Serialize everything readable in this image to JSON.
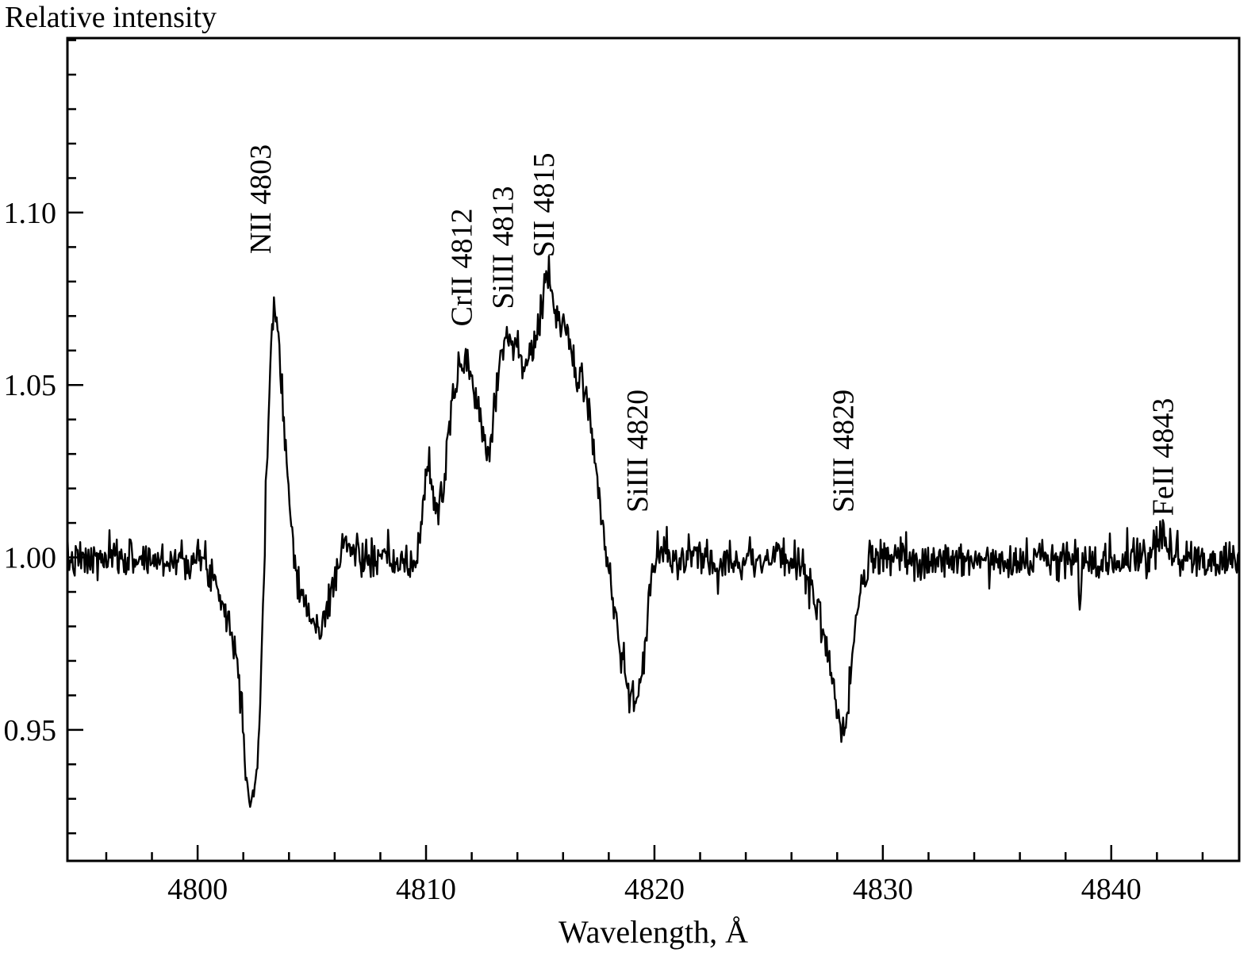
{
  "chart_data": {
    "type": "line",
    "title": "",
    "xlabel": "Wavelength, Å",
    "ylabel": "Relative intensity",
    "xlim": [
      4794.3,
      4845.6
    ],
    "ylim": [
      0.912,
      1.1506
    ],
    "grid": false,
    "legend": "none",
    "line_color": "#000000",
    "x_major_ticks": [
      4800,
      4810,
      4820,
      4830,
      4840
    ],
    "x_tick_labels": [
      "4800",
      "4810",
      "4820",
      "4830",
      "4840"
    ],
    "x_minor_step": 2,
    "y_major_ticks": [
      0.95,
      1.0,
      1.05,
      1.1
    ],
    "y_tick_labels": [
      "0.95",
      "1.00",
      "1.05",
      "1.10"
    ],
    "y_minor_step": 0.01,
    "noise_sigma": 0.0028,
    "sample_step": 0.04,
    "annotations": [
      {
        "label": "NII 4803",
        "x": 4802.85,
        "y": 1.088
      },
      {
        "label": "CrII 4812",
        "x": 4811.65,
        "y": 1.067
      },
      {
        "label": "SiIII 4813",
        "x": 4813.45,
        "y": 1.072
      },
      {
        "label": "SII 4815",
        "x": 4815.25,
        "y": 1.087
      },
      {
        "label": "SiIII 4820",
        "x": 4819.35,
        "y": 1.013
      },
      {
        "label": "SiIII 4829",
        "x": 4828.35,
        "y": 1.013
      },
      {
        "label": "FeII 4843",
        "x": 4842.35,
        "y": 1.012
      }
    ],
    "profile_points": [
      [
        4794.3,
        0.999
      ],
      [
        4795.5,
        0.999
      ],
      [
        4797.0,
        1.0
      ],
      [
        4798.5,
        0.999
      ],
      [
        4799.5,
        1.0
      ],
      [
        4800.2,
        0.999
      ],
      [
        4800.6,
        0.996
      ],
      [
        4801.0,
        0.99
      ],
      [
        4801.3,
        0.983
      ],
      [
        4801.6,
        0.975
      ],
      [
        4801.9,
        0.962
      ],
      [
        4802.1,
        0.941
      ],
      [
        4802.25,
        0.929
      ],
      [
        4802.45,
        0.932
      ],
      [
        4802.6,
        0.938
      ],
      [
        4802.8,
        0.968
      ],
      [
        4803.0,
        1.018
      ],
      [
        4803.2,
        1.062
      ],
      [
        4803.35,
        1.076
      ],
      [
        4803.55,
        1.063
      ],
      [
        4803.8,
        1.04
      ],
      [
        4804.0,
        1.016
      ],
      [
        4804.3,
        0.998
      ],
      [
        4804.6,
        0.988
      ],
      [
        4805.0,
        0.981
      ],
      [
        4805.4,
        0.979
      ],
      [
        4805.7,
        0.985
      ],
      [
        4806.0,
        0.995
      ],
      [
        4806.4,
        1.004
      ],
      [
        4806.8,
        1.002
      ],
      [
        4807.5,
        0.999
      ],
      [
        4808.5,
        0.999
      ],
      [
        4809.3,
        0.997
      ],
      [
        4809.6,
        0.999
      ],
      [
        4809.85,
        1.015
      ],
      [
        4810.05,
        1.027
      ],
      [
        4810.25,
        1.022
      ],
      [
        4810.45,
        1.012
      ],
      [
        4810.8,
        1.022
      ],
      [
        4811.1,
        1.042
      ],
      [
        4811.5,
        1.057
      ],
      [
        4811.8,
        1.058
      ],
      [
        4812.0,
        1.05
      ],
      [
        4812.3,
        1.044
      ],
      [
        4812.55,
        1.034
      ],
      [
        4812.8,
        1.032
      ],
      [
        4813.1,
        1.05
      ],
      [
        4813.35,
        1.063
      ],
      [
        4813.7,
        1.065
      ],
      [
        4814.0,
        1.059
      ],
      [
        4814.3,
        1.057
      ],
      [
        4814.6,
        1.059
      ],
      [
        4814.9,
        1.065
      ],
      [
        4815.1,
        1.073
      ],
      [
        4815.3,
        1.082
      ],
      [
        4815.45,
        1.079
      ],
      [
        4815.7,
        1.07
      ],
      [
        4815.9,
        1.067
      ],
      [
        4816.1,
        1.068
      ],
      [
        4816.4,
        1.058
      ],
      [
        4816.6,
        1.052
      ],
      [
        4816.9,
        1.051
      ],
      [
        4817.1,
        1.046
      ],
      [
        4817.4,
        1.028
      ],
      [
        4817.7,
        1.008
      ],
      [
        4817.95,
        1.0
      ],
      [
        4818.1,
        0.993
      ],
      [
        4818.4,
        0.978
      ],
      [
        4818.7,
        0.966
      ],
      [
        4819.0,
        0.959
      ],
      [
        4819.15,
        0.957
      ],
      [
        4819.35,
        0.961
      ],
      [
        4819.55,
        0.972
      ],
      [
        4819.75,
        0.988
      ],
      [
        4819.95,
        0.997
      ],
      [
        4820.2,
        1.002
      ],
      [
        4820.5,
        1.001
      ],
      [
        4821.0,
        0.999
      ],
      [
        4822.0,
        1.0
      ],
      [
        4823.5,
        0.999
      ],
      [
        4825.0,
        1.0
      ],
      [
        4826.3,
        0.999
      ],
      [
        4826.6,
        0.996
      ],
      [
        4826.9,
        0.99
      ],
      [
        4827.2,
        0.985
      ],
      [
        4827.5,
        0.975
      ],
      [
        4827.8,
        0.962
      ],
      [
        4828.0,
        0.953
      ],
      [
        4828.15,
        0.948
      ],
      [
        4828.3,
        0.95
      ],
      [
        4828.5,
        0.958
      ],
      [
        4828.7,
        0.972
      ],
      [
        4828.9,
        0.985
      ],
      [
        4829.1,
        0.993
      ],
      [
        4829.4,
        0.998
      ],
      [
        4829.7,
        1.0
      ],
      [
        4831.0,
        0.999
      ],
      [
        4833.0,
        0.999
      ],
      [
        4835.0,
        1.0
      ],
      [
        4837.0,
        0.999
      ],
      [
        4838.5,
        0.999
      ],
      [
        4838.62,
        0.986
      ],
      [
        4838.75,
        0.999
      ],
      [
        4840.0,
        0.999
      ],
      [
        4841.6,
        1.001
      ],
      [
        4842.0,
        1.004
      ],
      [
        4842.3,
        1.005
      ],
      [
        4842.7,
        1.002
      ],
      [
        4843.2,
        1.0
      ],
      [
        4844.5,
        0.999
      ],
      [
        4845.6,
        1.0
      ]
    ]
  }
}
